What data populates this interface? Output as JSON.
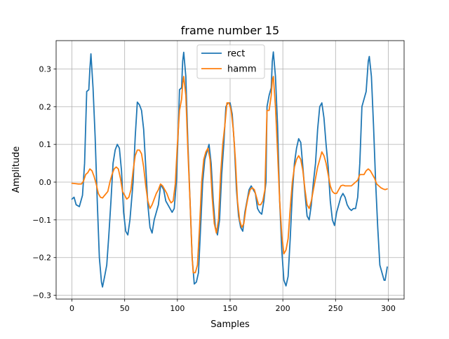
{
  "chart_data": {
    "type": "line",
    "title": "frame number 15",
    "xlabel": "Samples",
    "ylabel": "Amplitude",
    "xlim": [
      -15,
      315
    ],
    "ylim": [
      -0.31,
      0.375
    ],
    "x_ticks": [
      0,
      50,
      100,
      150,
      200,
      250,
      300
    ],
    "y_ticks": [
      -0.3,
      -0.2,
      -0.1,
      0.0,
      0.1,
      0.2,
      0.3
    ],
    "y_tick_labels": [
      "−0.3",
      "−0.2",
      "−0.1",
      "0.0",
      "0.1",
      "0.2",
      "0.3"
    ],
    "grid": true,
    "legend_position": "top-center",
    "series": [
      {
        "name": "rect",
        "color": "#1f77b4",
        "points": [
          [
            0,
            -0.045
          ],
          [
            2,
            -0.04
          ],
          [
            4,
            -0.06
          ],
          [
            7,
            -0.065
          ],
          [
            10,
            -0.035
          ],
          [
            12,
            0.05
          ],
          [
            14,
            0.24
          ],
          [
            16,
            0.245
          ],
          [
            17,
            0.3
          ],
          [
            18,
            0.34
          ],
          [
            20,
            0.25
          ],
          [
            22,
            0.12
          ],
          [
            24,
            -0.05
          ],
          [
            26,
            -0.2
          ],
          [
            28,
            -0.265
          ],
          [
            29,
            -0.278
          ],
          [
            31,
            -0.25
          ],
          [
            33,
            -0.22
          ],
          [
            35,
            -0.14
          ],
          [
            37,
            -0.05
          ],
          [
            39,
            0.05
          ],
          [
            41,
            0.085
          ],
          [
            43,
            0.1
          ],
          [
            45,
            0.09
          ],
          [
            47,
            0.03
          ],
          [
            49,
            -0.08
          ],
          [
            51,
            -0.13
          ],
          [
            53,
            -0.14
          ],
          [
            55,
            -0.1
          ],
          [
            58,
            0.0
          ],
          [
            60,
            0.12
          ],
          [
            62,
            0.212
          ],
          [
            64,
            0.205
          ],
          [
            66,
            0.19
          ],
          [
            68,
            0.14
          ],
          [
            70,
            0.04
          ],
          [
            72,
            -0.06
          ],
          [
            74,
            -0.12
          ],
          [
            76,
            -0.135
          ],
          [
            78,
            -0.1
          ],
          [
            80,
            -0.08
          ],
          [
            82,
            -0.06
          ],
          [
            84,
            -0.01
          ],
          [
            85,
            -0.01
          ],
          [
            87,
            -0.02
          ],
          [
            89,
            -0.05
          ],
          [
            91,
            -0.06
          ],
          [
            93,
            -0.07
          ],
          [
            95,
            -0.08
          ],
          [
            97,
            -0.07
          ],
          [
            99,
            0.0
          ],
          [
            101,
            0.15
          ],
          [
            102,
            0.245
          ],
          [
            104,
            0.25
          ],
          [
            105,
            0.32
          ],
          [
            106,
            0.344
          ],
          [
            108,
            0.28
          ],
          [
            110,
            0.1
          ],
          [
            112,
            -0.05
          ],
          [
            114,
            -0.2
          ],
          [
            116,
            -0.27
          ],
          [
            118,
            -0.265
          ],
          [
            120,
            -0.24
          ],
          [
            122,
            -0.12
          ],
          [
            124,
            0.0
          ],
          [
            126,
            0.06
          ],
          [
            128,
            0.08
          ],
          [
            130,
            0.1
          ],
          [
            132,
            0.05
          ],
          [
            134,
            -0.05
          ],
          [
            136,
            -0.12
          ],
          [
            138,
            -0.14
          ],
          [
            140,
            -0.1
          ],
          [
            142,
            0.02
          ],
          [
            144,
            0.1
          ],
          [
            146,
            0.2
          ],
          [
            148,
            0.21
          ],
          [
            150,
            0.21
          ],
          [
            152,
            0.18
          ],
          [
            154,
            0.1
          ],
          [
            156,
            -0.02
          ],
          [
            158,
            -0.09
          ],
          [
            160,
            -0.12
          ],
          [
            162,
            -0.13
          ],
          [
            164,
            -0.08
          ],
          [
            166,
            -0.05
          ],
          [
            168,
            -0.02
          ],
          [
            170,
            -0.01
          ],
          [
            172,
            -0.02
          ],
          [
            174,
            -0.03
          ],
          [
            176,
            -0.07
          ],
          [
            178,
            -0.08
          ],
          [
            180,
            -0.085
          ],
          [
            182,
            -0.05
          ],
          [
            184,
            0.0
          ],
          [
            185,
            0.2
          ],
          [
            187,
            0.23
          ],
          [
            189,
            0.25
          ],
          [
            190,
            0.32
          ],
          [
            191,
            0.345
          ],
          [
            193,
            0.28
          ],
          [
            195,
            0.15
          ],
          [
            197,
            -0.05
          ],
          [
            199,
            -0.18
          ],
          [
            201,
            -0.26
          ],
          [
            203,
            -0.275
          ],
          [
            205,
            -0.25
          ],
          [
            207,
            -0.15
          ],
          [
            209,
            -0.03
          ],
          [
            211,
            0.05
          ],
          [
            213,
            0.09
          ],
          [
            215,
            0.115
          ],
          [
            217,
            0.105
          ],
          [
            219,
            0.04
          ],
          [
            221,
            -0.03
          ],
          [
            223,
            -0.09
          ],
          [
            225,
            -0.1
          ],
          [
            227,
            -0.06
          ],
          [
            229,
            0.0
          ],
          [
            231,
            0.05
          ],
          [
            233,
            0.14
          ],
          [
            235,
            0.2
          ],
          [
            237,
            0.21
          ],
          [
            239,
            0.17
          ],
          [
            241,
            0.1
          ],
          [
            243,
            0.04
          ],
          [
            245,
            -0.05
          ],
          [
            247,
            -0.1
          ],
          [
            249,
            -0.115
          ],
          [
            251,
            -0.08
          ],
          [
            253,
            -0.06
          ],
          [
            255,
            -0.04
          ],
          [
            257,
            -0.03
          ],
          [
            259,
            -0.04
          ],
          [
            261,
            -0.06
          ],
          [
            263,
            -0.07
          ],
          [
            265,
            -0.075
          ],
          [
            267,
            -0.07
          ],
          [
            269,
            -0.07
          ],
          [
            271,
            -0.04
          ],
          [
            273,
            0.05
          ],
          [
            275,
            0.2
          ],
          [
            277,
            0.22
          ],
          [
            279,
            0.24
          ],
          [
            281,
            0.32
          ],
          [
            282,
            0.333
          ],
          [
            284,
            0.28
          ],
          [
            286,
            0.15
          ],
          [
            288,
            0.0
          ],
          [
            290,
            -0.12
          ],
          [
            292,
            -0.22
          ],
          [
            294,
            -0.24
          ],
          [
            296,
            -0.26
          ],
          [
            297,
            -0.26
          ],
          [
            299,
            -0.225
          ]
        ]
      },
      {
        "name": "hamm",
        "color": "#ff7f0e",
        "points": [
          [
            0,
            -0.003
          ],
          [
            3,
            -0.004
          ],
          [
            6,
            -0.005
          ],
          [
            9,
            -0.005
          ],
          [
            11,
            0.003
          ],
          [
            13,
            0.02
          ],
          [
            15,
            0.025
          ],
          [
            17,
            0.035
          ],
          [
            19,
            0.03
          ],
          [
            21,
            0.015
          ],
          [
            23,
            -0.005
          ],
          [
            25,
            -0.03
          ],
          [
            27,
            -0.04
          ],
          [
            29,
            -0.042
          ],
          [
            31,
            -0.035
          ],
          [
            34,
            -0.025
          ],
          [
            36,
            0.0
          ],
          [
            38,
            0.02
          ],
          [
            40,
            0.035
          ],
          [
            42,
            0.04
          ],
          [
            44,
            0.035
          ],
          [
            46,
            0.01
          ],
          [
            48,
            -0.025
          ],
          [
            50,
            -0.035
          ],
          [
            52,
            -0.045
          ],
          [
            54,
            -0.04
          ],
          [
            56,
            -0.02
          ],
          [
            58,
            0.03
          ],
          [
            60,
            0.07
          ],
          [
            62,
            0.085
          ],
          [
            64,
            0.085
          ],
          [
            66,
            0.075
          ],
          [
            68,
            0.04
          ],
          [
            70,
            -0.01
          ],
          [
            72,
            -0.05
          ],
          [
            74,
            -0.07
          ],
          [
            76,
            -0.06
          ],
          [
            78,
            -0.045
          ],
          [
            80,
            -0.03
          ],
          [
            82,
            -0.02
          ],
          [
            84,
            -0.005
          ],
          [
            86,
            -0.01
          ],
          [
            88,
            -0.02
          ],
          [
            90,
            -0.03
          ],
          [
            92,
            -0.045
          ],
          [
            94,
            -0.055
          ],
          [
            96,
            -0.05
          ],
          [
            98,
            -0.005
          ],
          [
            100,
            0.1
          ],
          [
            102,
            0.19
          ],
          [
            104,
            0.22
          ],
          [
            105,
            0.26
          ],
          [
            106,
            0.28
          ],
          [
            108,
            0.23
          ],
          [
            110,
            0.08
          ],
          [
            112,
            -0.05
          ],
          [
            114,
            -0.2
          ],
          [
            115,
            -0.24
          ],
          [
            117,
            -0.24
          ],
          [
            119,
            -0.22
          ],
          [
            121,
            -0.12
          ],
          [
            123,
            0.0
          ],
          [
            125,
            0.06
          ],
          [
            127,
            0.08
          ],
          [
            129,
            0.09
          ],
          [
            131,
            0.06
          ],
          [
            133,
            -0.04
          ],
          [
            135,
            -0.11
          ],
          [
            137,
            -0.135
          ],
          [
            139,
            -0.1
          ],
          [
            141,
            0.02
          ],
          [
            143,
            0.1
          ],
          [
            145,
            0.15
          ],
          [
            147,
            0.21
          ],
          [
            149,
            0.21
          ],
          [
            151,
            0.19
          ],
          [
            153,
            0.14
          ],
          [
            155,
            0.06
          ],
          [
            157,
            -0.05
          ],
          [
            159,
            -0.1
          ],
          [
            161,
            -0.12
          ],
          [
            163,
            -0.11
          ],
          [
            165,
            -0.07
          ],
          [
            167,
            -0.04
          ],
          [
            169,
            -0.02
          ],
          [
            171,
            -0.015
          ],
          [
            173,
            -0.02
          ],
          [
            175,
            -0.04
          ],
          [
            177,
            -0.06
          ],
          [
            179,
            -0.06
          ],
          [
            181,
            -0.05
          ],
          [
            183,
            -0.02
          ],
          [
            185,
            0.19
          ],
          [
            187,
            0.19
          ],
          [
            189,
            0.23
          ],
          [
            190,
            0.27
          ],
          [
            191,
            0.28
          ],
          [
            193,
            0.2
          ],
          [
            195,
            0.08
          ],
          [
            197,
            -0.05
          ],
          [
            199,
            -0.14
          ],
          [
            201,
            -0.19
          ],
          [
            203,
            -0.18
          ],
          [
            205,
            -0.15
          ],
          [
            207,
            -0.07
          ],
          [
            209,
            0.0
          ],
          [
            211,
            0.04
          ],
          [
            213,
            0.06
          ],
          [
            215,
            0.07
          ],
          [
            217,
            0.06
          ],
          [
            219,
            0.03
          ],
          [
            221,
            -0.02
          ],
          [
            223,
            -0.06
          ],
          [
            225,
            -0.07
          ],
          [
            227,
            -0.05
          ],
          [
            229,
            -0.02
          ],
          [
            231,
            0.01
          ],
          [
            233,
            0.04
          ],
          [
            235,
            0.06
          ],
          [
            237,
            0.08
          ],
          [
            239,
            0.07
          ],
          [
            241,
            0.05
          ],
          [
            243,
            0.02
          ],
          [
            245,
            -0.01
          ],
          [
            247,
            -0.025
          ],
          [
            249,
            -0.03
          ],
          [
            251,
            -0.03
          ],
          [
            253,
            -0.02
          ],
          [
            255,
            -0.01
          ],
          [
            257,
            -0.008
          ],
          [
            259,
            -0.01
          ],
          [
            261,
            -0.01
          ],
          [
            263,
            -0.01
          ],
          [
            265,
            -0.01
          ],
          [
            267,
            -0.005
          ],
          [
            269,
            0.0
          ],
          [
            271,
            0.005
          ],
          [
            273,
            0.02
          ],
          [
            275,
            0.02
          ],
          [
            277,
            0.02
          ],
          [
            279,
            0.03
          ],
          [
            281,
            0.035
          ],
          [
            283,
            0.03
          ],
          [
            285,
            0.02
          ],
          [
            287,
            0.01
          ],
          [
            289,
            -0.005
          ],
          [
            291,
            -0.01
          ],
          [
            293,
            -0.015
          ],
          [
            295,
            -0.018
          ],
          [
            297,
            -0.02
          ],
          [
            299,
            -0.018
          ]
        ]
      }
    ]
  }
}
